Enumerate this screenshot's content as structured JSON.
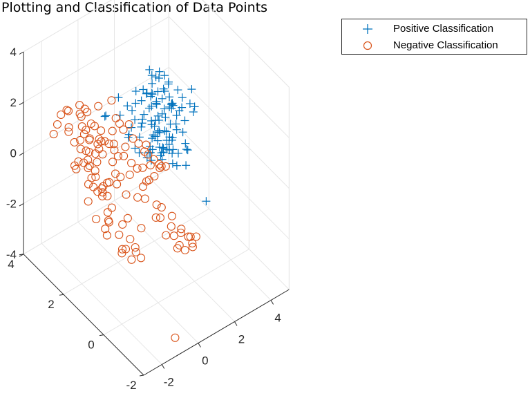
{
  "chart_data": {
    "type": "scatter",
    "title": "Plotting and Classification of Data Points",
    "legend_position": "top-right",
    "grid": true,
    "xlim": [
      -3,
      5
    ],
    "ylim": [
      -2,
      4
    ],
    "zlim": [
      -4,
      4
    ],
    "x_ticks": [
      "-2",
      "0",
      "2",
      "4"
    ],
    "y_ticks": [
      "-2",
      "0",
      "2",
      "4"
    ],
    "z_ticks": [
      "-4",
      "-2",
      "0",
      "2",
      "4"
    ],
    "series": [
      {
        "name": "Positive Classification",
        "marker": "plus",
        "color": "#0072BD",
        "points": [
          [
            1.6,
            0.4,
            2.6
          ],
          [
            1.2,
            0.2,
            2.4
          ],
          [
            1.4,
            0.6,
            2.6
          ],
          [
            1.0,
            0.3,
            2.4
          ],
          [
            1.8,
            0.3,
            2.2
          ],
          [
            2.3,
            0.5,
            2.5
          ],
          [
            1.2,
            0.4,
            1.6
          ],
          [
            0.8,
            0.5,
            1.4
          ],
          [
            0.9,
            1.0,
            1.8
          ],
          [
            1.2,
            1.1,
            2.0
          ],
          [
            1.5,
            1.0,
            1.9
          ],
          [
            1.9,
            0.8,
            1.4
          ],
          [
            0.5,
            1.3,
            1.7
          ],
          [
            1.4,
            1.4,
            1.5
          ],
          [
            1.1,
            1.3,
            1.0
          ],
          [
            0.4,
            1.7,
            1.4
          ],
          [
            0.7,
            1.8,
            1.5
          ],
          [
            1.3,
            1.5,
            1.3
          ],
          [
            1.1,
            1.8,
            1.2
          ],
          [
            1.5,
            1.7,
            1.2
          ],
          [
            1.7,
            1.5,
            1.3
          ],
          [
            0.5,
            0.9,
            1.0
          ],
          [
            0.9,
            1.6,
            1.6
          ],
          [
            1.2,
            1.8,
            1.5
          ],
          [
            1.8,
            1.3,
            1.0
          ],
          [
            1.6,
            1.9,
            1.5
          ],
          [
            2.1,
            2.2,
            1.6
          ],
          [
            2.2,
            1.8,
            1.7
          ],
          [
            2.1,
            1.6,
            1.5
          ],
          [
            2.1,
            2.0,
            1.4
          ],
          [
            2.0,
            2.4,
            1.5
          ],
          [
            2.3,
            2.4,
            1.4
          ],
          [
            2.5,
            1.6,
            1.5
          ],
          [
            2.7,
            1.7,
            1.3
          ],
          [
            2.6,
            1.8,
            1.2
          ],
          [
            2.6,
            1.8,
            1.6
          ],
          [
            0.9,
            2.8,
            1.5
          ],
          [
            1.1,
            2.3,
            1.3
          ],
          [
            1.3,
            2.3,
            1.5
          ],
          [
            1.5,
            2.2,
            1.6
          ],
          [
            1.9,
            1.8,
            1.6
          ],
          [
            2.2,
            2.3,
            1.9
          ],
          [
            1.7,
            2.1,
            1.9
          ],
          [
            2.0,
            1.9,
            1.6
          ],
          [
            1.8,
            2.0,
            1.8
          ],
          [
            2.3,
            2.1,
            1.7
          ],
          [
            2.5,
            2.0,
            1.8
          ],
          [
            2.3,
            2.2,
            2.2
          ],
          [
            2.3,
            2.4,
            2.1
          ],
          [
            2.6,
            2.3,
            2.2
          ],
          [
            2.5,
            2.7,
            2.0
          ],
          [
            3.0,
            2.2,
            1.7
          ],
          [
            3.1,
            2.3,
            1.5
          ],
          [
            3.0,
            2.4,
            1.8
          ],
          [
            3.2,
            1.7,
            1.4
          ],
          [
            2.8,
            2.5,
            1.7
          ],
          [
            2.9,
            2.3,
            1.3
          ],
          [
            3.1,
            2.1,
            0.9
          ],
          [
            3.4,
            2.1,
            1.3
          ],
          [
            2.9,
            1.4,
            0.4
          ],
          [
            3.0,
            1.8,
            0.7
          ],
          [
            2.6,
            1.0,
            0.4
          ],
          [
            1.8,
            1.2,
            0.7
          ],
          [
            1.5,
            1.1,
            0.6
          ],
          [
            1.4,
            1.2,
            0.6
          ],
          [
            2.0,
            0.4,
            0.9
          ],
          [
            1.1,
            0.3,
            1.2
          ],
          [
            1.4,
            0.7,
            1.4
          ],
          [
            0.4,
            0.2,
            1.6
          ],
          [
            0.8,
            0.6,
            1.0
          ],
          [
            0.1,
            2.7,
            1.2
          ],
          [
            -0.4,
            2.3,
            1.7
          ],
          [
            0.0,
            1.9,
            1.9
          ],
          [
            0.4,
            1.9,
            2.1
          ],
          [
            1.2,
            2.2,
            2.1
          ],
          [
            1.6,
            2.2,
            2.0
          ],
          [
            1.3,
            1.1,
            1.3
          ],
          [
            1.7,
            1.5,
            0.9
          ],
          [
            1.6,
            1.7,
            0.6
          ],
          [
            1.1,
            1.4,
            0.6
          ],
          [
            1.7,
            0.8,
            0.7
          ],
          [
            1.8,
            0.7,
            0.1
          ],
          [
            0.6,
            1.7,
            0.5
          ],
          [
            0.6,
            1.1,
            0.6
          ],
          [
            0.4,
            0.7,
            0.9
          ],
          [
            2.0,
            1.4,
            0.8
          ],
          [
            2.0,
            1.1,
            0.8
          ],
          [
            2.2,
            1.8,
            1.1
          ],
          [
            1.4,
            1.6,
            1.9
          ],
          [
            3.5,
            2.5,
            0.4
          ],
          [
            3.7,
            1.6,
            0.7
          ],
          [
            4.1,
            1.9,
            0.5
          ],
          [
            4.6,
            2.5,
            0.5
          ],
          [
            4.5,
            2.9,
            -0.5
          ],
          [
            3.5,
            1.7,
            -0.8
          ],
          [
            2.8,
            2.1,
            -0.8
          ],
          [
            2.7,
            1.9,
            -0.4
          ],
          [
            2.5,
            2.0,
            -0.7
          ],
          [
            2.2,
            1.8,
            -0.7
          ],
          [
            2.1,
            0.9,
            0.3
          ],
          [
            2.3,
            0.7,
            -0.1
          ],
          [
            1.3,
            1.2,
            0.9
          ],
          [
            1.7,
            1.7,
            0.5
          ],
          [
            2.2,
            -0.4,
            -0.6
          ],
          [
            0.6,
            2.0,
            0.8
          ],
          [
            0.5,
            1.4,
            0.6
          ],
          [
            1.0,
            2.4,
            0.2
          ],
          [
            1.4,
            2.2,
            0.2
          ],
          [
            0.9,
            1.2,
            0.6
          ],
          [
            0.9,
            1.1,
            0.8
          ],
          [
            1.5,
            1.4,
            1.0
          ],
          [
            1.9,
            1.0,
            -0.1
          ],
          [
            2.6,
            1.8,
            -0.5
          ]
        ]
      },
      {
        "name": "Negative Classification",
        "marker": "circle",
        "color": "#D95319",
        "points": [
          [
            -0.7,
            1.5,
            0.2
          ],
          [
            0.2,
            1.9,
            0.2
          ],
          [
            -0.3,
            2.4,
            0.6
          ],
          [
            -0.6,
            2.4,
            0.8
          ],
          [
            -0.3,
            2.0,
            0.1
          ],
          [
            -0.1,
            2.1,
            0.4
          ],
          [
            0.0,
            2.0,
            0.2
          ],
          [
            0.4,
            1.7,
            0.0
          ],
          [
            0.4,
            2.0,
            0.4
          ],
          [
            0.1,
            2.3,
            0.4
          ],
          [
            -0.6,
            2.3,
            0.8
          ],
          [
            -1.0,
            2.7,
            1.1
          ],
          [
            -0.5,
            2.4,
            1.1
          ],
          [
            0.8,
            1.5,
            -0.2
          ],
          [
            0.9,
            1.4,
            -0.7
          ],
          [
            1.3,
            0.8,
            0.2
          ],
          [
            1.3,
            1.1,
            -0.1
          ],
          [
            1.5,
            1.2,
            -0.2
          ],
          [
            0.2,
            1.6,
            -0.3
          ],
          [
            -0.2,
            1.7,
            -0.3
          ],
          [
            -0.7,
            2.5,
            0.2
          ],
          [
            -0.4,
            1.7,
            -0.5
          ],
          [
            -1.0,
            2.6,
            0.0
          ],
          [
            -0.8,
            2.4,
            -0.6
          ],
          [
            -0.6,
            2.0,
            -0.6
          ],
          [
            -0.6,
            2.6,
            -0.6
          ],
          [
            -0.8,
            2.7,
            -0.4
          ],
          [
            -0.6,
            1.9,
            -0.5
          ],
          [
            0.0,
            1.6,
            -1.0
          ],
          [
            0.3,
            1.3,
            -1.0
          ],
          [
            0.6,
            1.3,
            -0.7
          ],
          [
            0.6,
            1.2,
            -1.1
          ],
          [
            0.8,
            0.8,
            -1.1
          ],
          [
            1.0,
            0.8,
            -1.7
          ],
          [
            1.2,
            0.3,
            -2.1
          ],
          [
            1.5,
            0.3,
            -2.6
          ],
          [
            1.5,
            0.4,
            -2.8
          ],
          [
            1.7,
            0.2,
            -2.8
          ],
          [
            2.1,
            0.2,
            -2.7
          ],
          [
            2.0,
            0.2,
            -2.4
          ],
          [
            2.2,
            0.1,
            -2.4
          ],
          [
            2.1,
            0.4,
            -2.6
          ],
          [
            1.9,
            0.0,
            -2.6
          ],
          [
            1.8,
            0.5,
            -2.4
          ],
          [
            1.6,
            0.8,
            -2.3
          ],
          [
            1.6,
            0.3,
            -2.0
          ],
          [
            1.2,
            0.7,
            -2.4
          ],
          [
            1.2,
            1.2,
            -2.1
          ],
          [
            1.4,
            1.1,
            -1.7
          ],
          [
            1.2,
            0.4,
            -1.4
          ],
          [
            0.5,
            1.3,
            -2.3
          ],
          [
            0.2,
            1.7,
            -2.1
          ],
          [
            0.0,
            1.4,
            -2.6
          ],
          [
            0.1,
            1.2,
            -3.0
          ],
          [
            -0.5,
            1.5,
            -2.3
          ],
          [
            -0.2,
            1.6,
            -2.1
          ],
          [
            -0.5,
            2.0,
            -2.2
          ],
          [
            -1.1,
            2.1,
            -1.9
          ],
          [
            -1.2,
            2.4,
            -1.4
          ],
          [
            -0.9,
            1.7,
            -1.4
          ],
          [
            -0.7,
            1.9,
            -1.0
          ],
          [
            -0.8,
            2.3,
            -1.1
          ],
          [
            -0.6,
            2.2,
            -0.9
          ],
          [
            -0.9,
            2.0,
            -0.7
          ],
          [
            -1.3,
            2.3,
            -0.6
          ],
          [
            -1.3,
            2.8,
            -0.1
          ],
          [
            -1.1,
            2.6,
            0.4
          ],
          [
            -1.4,
            2.6,
            0.6
          ],
          [
            -2.0,
            3.4,
            0.8
          ],
          [
            -1.8,
            3.4,
            1.1
          ],
          [
            -1.6,
            3.4,
            1.4
          ],
          [
            -1.5,
            3.1,
            1.1
          ],
          [
            -1.4,
            3.2,
            0.8
          ],
          [
            -1.3,
            3.0,
            0.5
          ],
          [
            -1.2,
            2.8,
            0.7
          ],
          [
            -1.1,
            2.8,
            1.2
          ],
          [
            -0.9,
            2.2,
            0.9
          ],
          [
            -0.5,
            2.0,
            0.9
          ],
          [
            -0.2,
            2.1,
            1.2
          ],
          [
            0.1,
            2.2,
            1.5
          ],
          [
            0.3,
            2.6,
            1.8
          ],
          [
            0.3,
            2.2,
            1.2
          ],
          [
            0.4,
            2.1,
            1.0
          ],
          [
            0.6,
            2.0,
            1.2
          ],
          [
            0.6,
            1.8,
            0.8
          ],
          [
            0.8,
            1.7,
            0.6
          ],
          [
            0.9,
            1.5,
            0.4
          ],
          [
            1.1,
            1.6,
            0.5
          ],
          [
            1.1,
            1.5,
            0.2
          ],
          [
            1.3,
            1.4,
            0.0
          ],
          [
            1.5,
            1.3,
            -0.2
          ],
          [
            1.0,
            1.1,
            -0.3
          ],
          [
            0.9,
            1.2,
            0.1
          ],
          [
            0.6,
            1.0,
            -0.2
          ],
          [
            0.5,
            1.5,
            -0.1
          ],
          [
            -0.3,
            2.9,
            0.8
          ],
          [
            -0.4,
            3.3,
            1.2
          ],
          [
            -0.7,
            3.2,
            1.1
          ],
          [
            -0.6,
            2.8,
            1.1
          ],
          [
            -0.1,
            2.9,
            1.5
          ],
          [
            -0.6,
            3.0,
            1.4
          ],
          [
            -0.8,
            3.2,
            1.6
          ],
          [
            -1.3,
            3.3,
            1.5
          ],
          [
            -1.5,
            3.2,
            1.7
          ],
          [
            -1.0,
            3.0,
            1.5
          ],
          [
            -1.2,
            2.6,
            1.1
          ],
          [
            -0.9,
            2.6,
            0.8
          ],
          [
            -0.7,
            2.8,
            0.5
          ],
          [
            -0.5,
            2.5,
            0.3
          ],
          [
            -0.3,
            2.5,
            0.0
          ],
          [
            -0.5,
            2.6,
            -0.3
          ],
          [
            -0.6,
            2.9,
            -0.1
          ],
          [
            -0.9,
            2.9,
            -0.4
          ],
          [
            -1.1,
            2.5,
            -0.2
          ],
          [
            -1.4,
            2.9,
            -0.3
          ],
          [
            -1.2,
            3.0,
            -0.6
          ],
          [
            -0.8,
            2.6,
            -0.8
          ],
          [
            -0.7,
            2.6,
            -1.2
          ],
          [
            -0.3,
            2.5,
            -1.5
          ],
          [
            -0.1,
            2.7,
            -1.9
          ],
          [
            0.1,
            2.4,
            -2.2
          ],
          [
            -0.2,
            2.3,
            -2.5
          ],
          [
            -0.6,
            2.1,
            -2.5
          ],
          [
            -0.5,
            2.1,
            -2.8
          ],
          [
            -0.1,
            1.7,
            -3.2
          ],
          [
            0.2,
            1.8,
            -3.4
          ],
          [
            0.5,
            1.6,
            -3.3
          ],
          [
            0.6,
            1.4,
            -3.6
          ],
          [
            0.3,
            1.6,
            -3.7
          ],
          [
            0.1,
            1.9,
            -3.6
          ],
          [
            0.6,
            -0.3,
            -5.4
          ]
        ]
      }
    ]
  }
}
